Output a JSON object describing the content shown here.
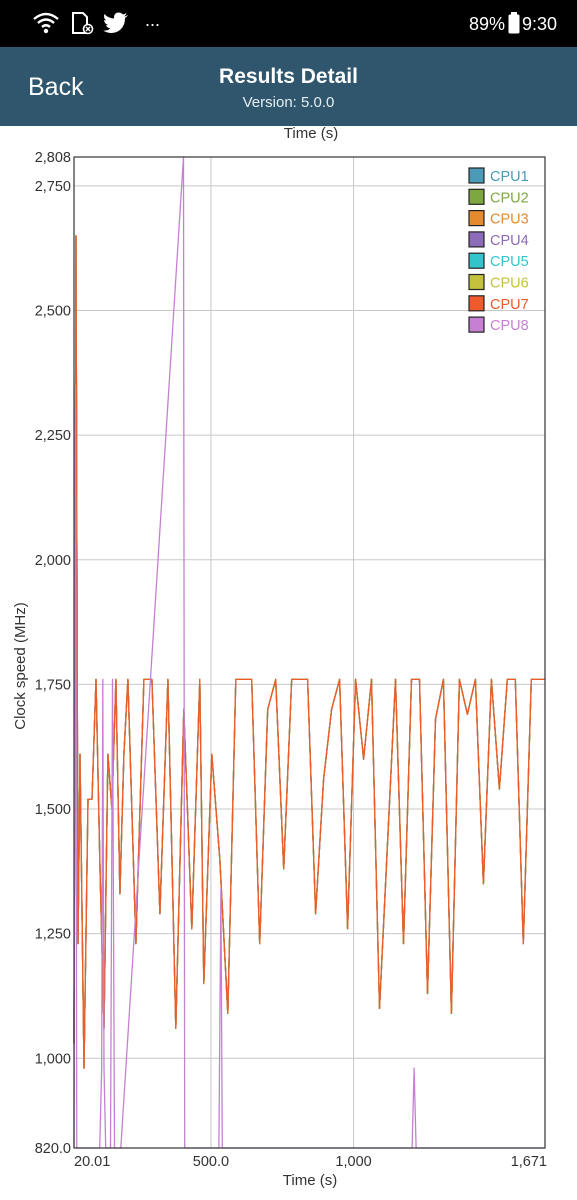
{
  "status_bar": {
    "battery": "89%",
    "time": "9:30",
    "more": "...",
    "icons": [
      "wifi-icon",
      "sd-card-icon",
      "twitter-icon",
      "battery-icon"
    ]
  },
  "header": {
    "back_label": "Back",
    "title": "Results Detail",
    "subtitle": "Version: 5.0.0",
    "background": "#2f566d"
  },
  "chart_data": {
    "type": "line",
    "top_label": "Time (s)",
    "xlabel": "Time (s)",
    "ylabel": "Clock speed (MHz)",
    "xlim": [
      20.01,
      1671
    ],
    "ylim": [
      820.0,
      2808
    ],
    "x_ticks": [
      20.01,
      500.0,
      1000,
      1671
    ],
    "x_tick_labels": [
      "20.01",
      "500.0",
      "1,000",
      "1,671"
    ],
    "y_ticks": [
      820.0,
      1000,
      1250,
      1500,
      1750,
      2000,
      2250,
      2500,
      2750,
      2808
    ],
    "y_tick_labels": [
      "820.0",
      "1,000",
      "1,250",
      "1,500",
      "1,750",
      "2,000",
      "2,250",
      "2,500",
      "2,750",
      "2,808"
    ],
    "grid": true,
    "legend_position": "top-right",
    "series": [
      {
        "name": "CPU1",
        "color": "#4a9ab8",
        "x": [
          20.01,
          27,
          34,
          41,
          55,
          69,
          83,
          97,
          111,
          125,
          139,
          153,
          167,
          181,
          195,
          209,
          237,
          265,
          293,
          321,
          349,
          377,
          405,
          433,
          461,
          475,
          503,
          531,
          559,
          587,
          615,
          643,
          671,
          699,
          727,
          755,
          783,
          811,
          839,
          867,
          895,
          923,
          951,
          979,
          1007,
          1035,
          1063,
          1091,
          1119,
          1147,
          1175,
          1203,
          1231,
          1259,
          1287,
          1315,
          1343,
          1371,
          1399,
          1427,
          1455,
          1483,
          1511,
          1539,
          1567,
          1595,
          1623,
          1651,
          1671
        ],
        "values": [
          1030,
          2650,
          1230,
          1610,
          980,
          1520,
          1520,
          1760,
          1380,
          1060,
          1610,
          1500,
          1760,
          1330,
          1610,
          1760,
          1230,
          1760,
          1760,
          1290,
          1760,
          1060,
          1700,
          1260,
          1760,
          1150,
          1610,
          1400,
          1090,
          1760,
          1760,
          1760,
          1230,
          1700,
          1760,
          1380,
          1760,
          1760,
          1760,
          1290,
          1560,
          1700,
          1760,
          1260,
          1760,
          1600,
          1760,
          1100,
          1430,
          1760,
          1230,
          1760,
          1760,
          1130,
          1680,
          1760,
          1090,
          1760,
          1690,
          1760,
          1350,
          1760,
          1540,
          1760,
          1760,
          1230,
          1760,
          1760,
          1760
        ]
      },
      {
        "name": "CPU2",
        "color": "#7ea83f",
        "x": [
          20.01,
          27,
          34,
          41,
          55,
          69,
          83,
          97,
          111,
          125,
          139,
          153,
          167,
          181,
          195,
          209,
          237,
          265,
          293,
          321,
          349,
          377,
          405,
          433,
          461,
          475,
          503,
          531,
          559,
          587,
          615,
          643,
          671,
          699,
          727,
          755,
          783,
          811,
          839,
          867,
          895,
          923,
          951,
          979,
          1007,
          1035,
          1063,
          1091,
          1119,
          1147,
          1175,
          1203,
          1231,
          1259,
          1287,
          1315,
          1343,
          1371,
          1399,
          1427,
          1455,
          1483,
          1511,
          1539,
          1567,
          1595,
          1623,
          1651,
          1671
        ],
        "values": [
          1030,
          2650,
          1230,
          1610,
          980,
          1520,
          1520,
          1760,
          1380,
          1060,
          1610,
          1500,
          1760,
          1330,
          1610,
          1760,
          1230,
          1760,
          1760,
          1290,
          1760,
          1060,
          1700,
          1260,
          1760,
          1150,
          1610,
          1400,
          1090,
          1760,
          1760,
          1760,
          1230,
          1700,
          1760,
          1380,
          1760,
          1760,
          1760,
          1290,
          1560,
          1700,
          1760,
          1260,
          1760,
          1600,
          1760,
          1100,
          1430,
          1760,
          1230,
          1760,
          1760,
          1130,
          1680,
          1760,
          1090,
          1760,
          1690,
          1760,
          1350,
          1760,
          1540,
          1760,
          1760,
          1230,
          1760,
          1760,
          1760
        ]
      },
      {
        "name": "CPU3",
        "color": "#e68a2e",
        "x": [
          20.01,
          27,
          34,
          41,
          55,
          69,
          83,
          97,
          111,
          125,
          139,
          153,
          167,
          181,
          195,
          209,
          237,
          265,
          293,
          321,
          349,
          377,
          405,
          433,
          461,
          475,
          503,
          531,
          559,
          587,
          615,
          643,
          671,
          699,
          727,
          755,
          783,
          811,
          839,
          867,
          895,
          923,
          951,
          979,
          1007,
          1035,
          1063,
          1091,
          1119,
          1147,
          1175,
          1203,
          1231,
          1259,
          1287,
          1315,
          1343,
          1371,
          1399,
          1427,
          1455,
          1483,
          1511,
          1539,
          1567,
          1595,
          1623,
          1651,
          1671
        ],
        "values": [
          1030,
          2650,
          1230,
          1610,
          980,
          1520,
          1520,
          1760,
          1380,
          1060,
          1610,
          1500,
          1760,
          1330,
          1610,
          1760,
          1230,
          1760,
          1760,
          1290,
          1760,
          1060,
          1700,
          1260,
          1760,
          1150,
          1610,
          1400,
          1090,
          1760,
          1760,
          1760,
          1230,
          1700,
          1760,
          1380,
          1760,
          1760,
          1760,
          1290,
          1560,
          1700,
          1760,
          1260,
          1760,
          1600,
          1760,
          1100,
          1430,
          1760,
          1230,
          1760,
          1760,
          1130,
          1680,
          1760,
          1090,
          1760,
          1690,
          1760,
          1350,
          1760,
          1540,
          1760,
          1760,
          1230,
          1760,
          1760,
          1760
        ]
      },
      {
        "name": "CPU4",
        "color": "#8c6bb8",
        "x": [
          20.01,
          27,
          34,
          41,
          55,
          69,
          83,
          97,
          111,
          125,
          139,
          153,
          167,
          181,
          195,
          209,
          237,
          265,
          293,
          321,
          349,
          377,
          405,
          433,
          461,
          475,
          503,
          531,
          559,
          587,
          615,
          643,
          671,
          699,
          727,
          755,
          783,
          811,
          839,
          867,
          895,
          923,
          951,
          979,
          1007,
          1035,
          1063,
          1091,
          1119,
          1147,
          1175,
          1203,
          1231,
          1259,
          1287,
          1315,
          1343,
          1371,
          1399,
          1427,
          1455,
          1483,
          1511,
          1539,
          1567,
          1595,
          1623,
          1651,
          1671
        ],
        "values": [
          1030,
          2650,
          1230,
          1610,
          980,
          1520,
          1520,
          1760,
          1380,
          1060,
          1610,
          1500,
          1760,
          1330,
          1610,
          1760,
          1230,
          1760,
          1760,
          1290,
          1760,
          1060,
          1700,
          1260,
          1760,
          1150,
          1610,
          1400,
          1090,
          1760,
          1760,
          1760,
          1230,
          1700,
          1760,
          1380,
          1760,
          1760,
          1760,
          1290,
          1560,
          1700,
          1760,
          1260,
          1760,
          1600,
          1760,
          1100,
          1430,
          1760,
          1230,
          1760,
          1760,
          1130,
          1680,
          1760,
          1090,
          1760,
          1690,
          1760,
          1350,
          1760,
          1540,
          1760,
          1760,
          1230,
          1760,
          1760,
          1760
        ]
      },
      {
        "name": "CPU5",
        "color": "#33c4cc",
        "x": [
          20.01,
          27,
          34,
          41,
          55,
          69,
          83,
          97,
          111,
          125,
          139,
          153,
          167,
          181,
          195,
          209,
          237,
          265,
          293,
          321,
          349,
          377,
          405,
          433,
          461,
          475,
          503,
          531,
          559,
          587,
          615,
          643,
          671,
          699,
          727,
          755,
          783,
          811,
          839,
          867,
          895,
          923,
          951,
          979,
          1007,
          1035,
          1063,
          1091,
          1119,
          1147,
          1175,
          1203,
          1231,
          1259,
          1287,
          1315,
          1343,
          1371,
          1399,
          1427,
          1455,
          1483,
          1511,
          1539,
          1567,
          1595,
          1623,
          1651,
          1671
        ],
        "values": [
          1030,
          2650,
          1230,
          1610,
          980,
          1520,
          1520,
          1760,
          1380,
          1060,
          1610,
          1500,
          1760,
          1330,
          1610,
          1760,
          1230,
          1760,
          1760,
          1290,
          1760,
          1060,
          1700,
          1260,
          1760,
          1150,
          1610,
          1400,
          1090,
          1760,
          1760,
          1760,
          1230,
          1700,
          1760,
          1380,
          1760,
          1760,
          1760,
          1290,
          1560,
          1700,
          1760,
          1260,
          1760,
          1600,
          1760,
          1100,
          1430,
          1760,
          1230,
          1760,
          1760,
          1130,
          1680,
          1760,
          1090,
          1760,
          1690,
          1760,
          1350,
          1760,
          1540,
          1760,
          1760,
          1230,
          1760,
          1760,
          1760
        ]
      },
      {
        "name": "CPU6",
        "color": "#c4c23d",
        "x": [
          20.01,
          27,
          34,
          41,
          55,
          69,
          83,
          97,
          111,
          125,
          139,
          153,
          167,
          181,
          195,
          209,
          237,
          265,
          293,
          321,
          349,
          377,
          405,
          433,
          461,
          475,
          503,
          531,
          559,
          587,
          615,
          643,
          671,
          699,
          727,
          755,
          783,
          811,
          839,
          867,
          895,
          923,
          951,
          979,
          1007,
          1035,
          1063,
          1091,
          1119,
          1147,
          1175,
          1203,
          1231,
          1259,
          1287,
          1315,
          1343,
          1371,
          1399,
          1427,
          1455,
          1483,
          1511,
          1539,
          1567,
          1595,
          1623,
          1651,
          1671
        ],
        "values": [
          1030,
          2650,
          1230,
          1610,
          980,
          1520,
          1520,
          1760,
          1380,
          1060,
          1610,
          1500,
          1760,
          1330,
          1610,
          1760,
          1230,
          1760,
          1760,
          1290,
          1760,
          1060,
          1700,
          1260,
          1760,
          1150,
          1610,
          1400,
          1090,
          1760,
          1760,
          1760,
          1230,
          1700,
          1760,
          1380,
          1760,
          1760,
          1760,
          1290,
          1560,
          1700,
          1760,
          1260,
          1760,
          1600,
          1760,
          1100,
          1430,
          1760,
          1230,
          1760,
          1760,
          1130,
          1680,
          1760,
          1090,
          1760,
          1690,
          1760,
          1350,
          1760,
          1540,
          1760,
          1760,
          1230,
          1760,
          1760,
          1760
        ]
      },
      {
        "name": "CPU7",
        "color": "#ef5a2a",
        "x": [
          20.01,
          27,
          34,
          41,
          55,
          69,
          83,
          97,
          111,
          125,
          139,
          153,
          167,
          181,
          195,
          209,
          237,
          265,
          293,
          321,
          349,
          377,
          405,
          433,
          461,
          475,
          503,
          531,
          559,
          587,
          615,
          643,
          671,
          699,
          727,
          755,
          783,
          811,
          839,
          867,
          895,
          923,
          951,
          979,
          1007,
          1035,
          1063,
          1091,
          1119,
          1147,
          1175,
          1203,
          1231,
          1259,
          1287,
          1315,
          1343,
          1371,
          1399,
          1427,
          1455,
          1483,
          1511,
          1539,
          1567,
          1595,
          1623,
          1651,
          1671
        ],
        "values": [
          1030,
          2650,
          1230,
          1610,
          980,
          1520,
          1520,
          1760,
          1380,
          1060,
          1610,
          1500,
          1760,
          1330,
          1610,
          1760,
          1230,
          1760,
          1760,
          1290,
          1760,
          1060,
          1700,
          1260,
          1760,
          1150,
          1610,
          1400,
          1090,
          1760,
          1760,
          1760,
          1230,
          1700,
          1760,
          1380,
          1760,
          1760,
          1760,
          1290,
          1560,
          1700,
          1760,
          1260,
          1760,
          1600,
          1760,
          1100,
          1430,
          1760,
          1230,
          1760,
          1760,
          1130,
          1680,
          1760,
          1090,
          1760,
          1690,
          1760,
          1350,
          1760,
          1540,
          1760,
          1760,
          1230,
          1760,
          1760,
          1760
        ]
      },
      {
        "name": "CPU8",
        "color": "#c77fd4",
        "x": [
          20.01,
          25,
          30,
          110,
          117,
          121,
          125,
          131,
          148,
          155,
          162,
          184,
          404,
          408,
          412,
          416,
          528,
          535,
          540,
          545,
          1205,
          1212,
          1219,
          1226,
          1671
        ],
        "values": [
          820,
          2350,
          820,
          820,
          980,
          1760,
          980,
          820,
          820,
          1760,
          820,
          820,
          2808,
          820,
          820,
          820,
          820,
          1340,
          820,
          820,
          820,
          980,
          820,
          820,
          820
        ]
      }
    ]
  }
}
